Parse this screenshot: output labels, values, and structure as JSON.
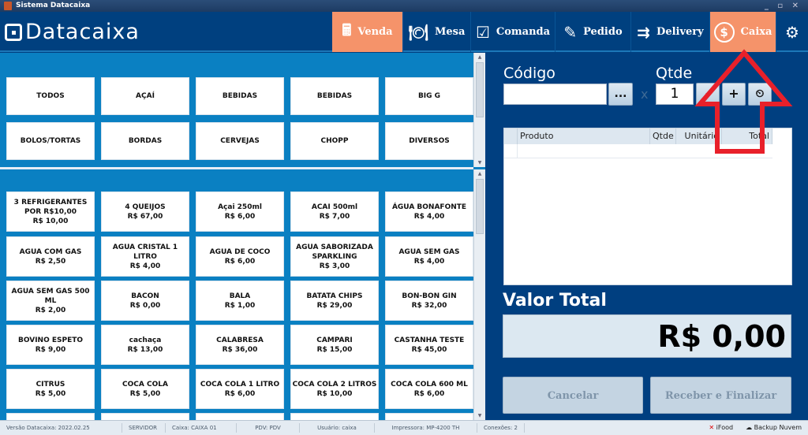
{
  "window": {
    "title": "Sistema Datacaixa",
    "controls": "_ ▫ ✕"
  },
  "header": {
    "logo": "Datacaixa",
    "nav": [
      {
        "label": "Venda",
        "icon": "cash-register-icon",
        "active": true
      },
      {
        "label": "Mesa",
        "icon": "plate-icon"
      },
      {
        "label": "Comanda",
        "icon": "checklist-icon"
      },
      {
        "label": "Pedido",
        "icon": "order-edit-icon"
      },
      {
        "label": "Delivery",
        "icon": "delivery-box-icon"
      },
      {
        "label": "Caixa",
        "icon": "dollar-circle-icon",
        "active": true
      },
      {
        "label": "",
        "icon": "gears-icon"
      }
    ]
  },
  "categories": [
    "TODOS",
    "AÇAÍ",
    "BEBIDAS",
    "BEBIDAS",
    "BIG G",
    "BOLOS/TORTAS",
    "BORDAS",
    "CERVEJAS",
    "CHOPP",
    "DIVERSOS"
  ],
  "products": [
    {
      "name": "3 REFRIGERANTES POR R$10,00",
      "price": "R$ 10,00"
    },
    {
      "name": "4 QUEIJOS",
      "price": "R$ 67,00"
    },
    {
      "name": "Açai 250ml",
      "price": "R$ 6,00"
    },
    {
      "name": "ACAI 500ml",
      "price": "R$ 7,00"
    },
    {
      "name": "ÁGUA BONAFONTE",
      "price": "R$ 4,00"
    },
    {
      "name": "AGUA COM GAS",
      "price": "R$ 2,50"
    },
    {
      "name": "AGUA CRISTAL 1 LITRO",
      "price": "R$ 4,00"
    },
    {
      "name": "AGUA DE COCO",
      "price": "R$ 6,00"
    },
    {
      "name": "AGUA SABORIZADA SPARKLING",
      "price": "R$ 3,00"
    },
    {
      "name": "AGUA SEM GAS",
      "price": "R$ 4,00"
    },
    {
      "name": "AGUA SEM GAS 500 ML",
      "price": "R$ 2,00"
    },
    {
      "name": "BACON",
      "price": "R$ 0,00"
    },
    {
      "name": "BALA",
      "price": "R$ 1,00"
    },
    {
      "name": "BATATA CHIPS",
      "price": "R$ 29,00"
    },
    {
      "name": "BON-BON GIN",
      "price": "R$ 32,00"
    },
    {
      "name": "BOVINO ESPETO",
      "price": "R$ 9,00"
    },
    {
      "name": "cachaça",
      "price": "R$ 13,00"
    },
    {
      "name": "CALABRESA",
      "price": "R$ 36,00"
    },
    {
      "name": "CAMPARI",
      "price": "R$ 15,00"
    },
    {
      "name": "CASTANHA TESTE",
      "price": "R$ 45,00"
    },
    {
      "name": "CITRUS",
      "price": "R$ 5,00"
    },
    {
      "name": "COCA COLA",
      "price": "R$ 5,00"
    },
    {
      "name": "COCA COLA 1 LITRO",
      "price": "R$ 6,00"
    },
    {
      "name": "COCA COLA 2 LITROS",
      "price": "R$ 10,00"
    },
    {
      "name": "COCA COLA 600 ML",
      "price": "R$ 6,00"
    }
  ],
  "sale": {
    "codigo_label": "Código",
    "codigo_value": "",
    "browse": "...",
    "times": "x",
    "qtde_label": "Qtde",
    "qtde_value": "1",
    "minus": "-",
    "plus": "+",
    "scale_icon": "scale-icon",
    "columns": [
      "Produto",
      "Qtde",
      "Unitário",
      "Total"
    ],
    "valor_label": "Valor Total",
    "valor": "R$ 0,00",
    "cancel": "Cancelar",
    "finish": "Receber e Finalizar"
  },
  "annotation": {
    "type": "arrow",
    "color": "#e8202a",
    "points_to": "Caixa"
  },
  "status": {
    "items": [
      "Versão Datacaixa: 2022.02.25",
      "SERVIDOR",
      "Caixa: CAIXA 01",
      "PDV: PDV",
      "Usuário: caixa",
      "Impressora: MP-4200 TH",
      "Conexões: 2"
    ],
    "ifood": "iFood",
    "backup": "Backup Nuvem"
  },
  "colors": {
    "header": "#00407f",
    "active_nav": "#f5936a",
    "left_bg": "#0a80c2"
  }
}
